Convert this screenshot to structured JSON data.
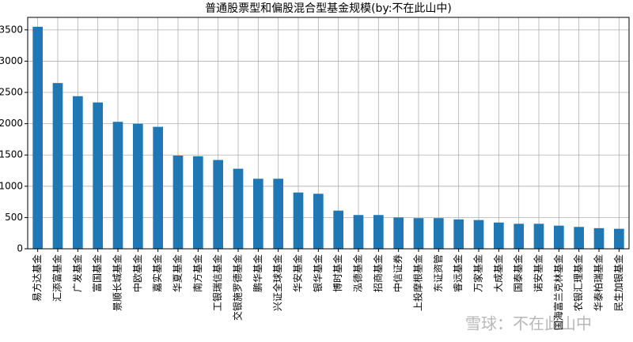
{
  "chart_data": {
    "type": "bar",
    "title": "普通股票型和偏股混合型基金规模(by:不在此山中)",
    "categories": [
      "易方达基金",
      "汇添富基金",
      "广发基金",
      "富国基金",
      "景顺长城基金",
      "中欧基金",
      "嘉实基金",
      "华夏基金",
      "南方基金",
      "工银瑞信基金",
      "交银施罗德基金",
      "鹏华基金",
      "兴证全球基金",
      "华安基金",
      "银华基金",
      "博时基金",
      "泓德基金",
      "招商基金",
      "中信证券",
      "上投摩根基金",
      "东证资管",
      "睿远基金",
      "万家基金",
      "大成基金",
      "国泰基金",
      "诺安基金",
      "国海富兰克林基金",
      "农银汇理基金",
      "华泰柏瑞基金",
      "民生加银基金"
    ],
    "values": [
      3550,
      2650,
      2440,
      2340,
      2030,
      2000,
      1950,
      1490,
      1480,
      1420,
      1280,
      1120,
      1120,
      900,
      880,
      610,
      540,
      540,
      500,
      490,
      490,
      470,
      460,
      420,
      400,
      400,
      370,
      350,
      330,
      320
    ],
    "color": "#1f77b4",
    "ylim": [
      0,
      3700
    ],
    "yticks": [
      0,
      500,
      1000,
      1500,
      2000,
      2500,
      3000,
      3500
    ],
    "grid": true,
    "watermark": "雪球：不在此山中"
  }
}
